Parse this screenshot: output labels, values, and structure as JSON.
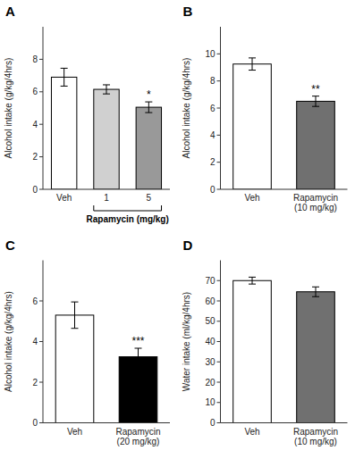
{
  "chart_data": [
    {
      "type": "bar",
      "title": "A",
      "categories": [
        "Veh",
        "1",
        "5"
      ],
      "values": [
        6.9,
        6.15,
        5.05
      ],
      "errors": [
        0.55,
        0.28,
        0.33
      ],
      "colors": [
        "#ffffff",
        "#d0d0d0",
        "#999999"
      ],
      "ylabel": "Alcohol intake (g/kg/4hrs)",
      "xlabel": "Rapamycin (mg/kg)",
      "ylim": [
        0,
        10
      ],
      "yticks": [
        0,
        2,
        4,
        6,
        8
      ],
      "annotations": [
        {
          "category": "5",
          "text": "*"
        }
      ]
    },
    {
      "type": "bar",
      "title": "B",
      "categories": [
        "Veh",
        "Rapamycin\n(10 mg/kg)"
      ],
      "values": [
        9.25,
        6.5
      ],
      "errors": [
        0.45,
        0.38
      ],
      "colors": [
        "#ffffff",
        "#707070"
      ],
      "ylabel": "Alcohol intake (g/kg/4hrs)",
      "ylim": [
        0,
        12
      ],
      "yticks": [
        0,
        2,
        4,
        6,
        8,
        10
      ],
      "annotations": [
        {
          "category": "Rapamycin\n(10 mg/kg)",
          "text": "**"
        }
      ]
    },
    {
      "type": "bar",
      "title": "C",
      "categories": [
        "Veh",
        "Rapamycin\n(20 mg/kg)"
      ],
      "values": [
        5.3,
        3.25
      ],
      "errors": [
        0.65,
        0.42
      ],
      "colors": [
        "#ffffff",
        "#000000"
      ],
      "ylabel": "Alcohol intake (g/kg/4hrs)",
      "ylim": [
        0,
        8
      ],
      "yticks": [
        0,
        2,
        4,
        6
      ],
      "annotations": [
        {
          "category": "Rapamycin\n(20 mg/kg)",
          "text": "***"
        }
      ]
    },
    {
      "type": "bar",
      "title": "D",
      "categories": [
        "Veh",
        "Rapamycin\n(10 mg/kg)"
      ],
      "values": [
        70.0,
        64.5
      ],
      "errors": [
        1.7,
        2.4
      ],
      "colors": [
        "#ffffff",
        "#707070"
      ],
      "ylabel": "Water intake (ml/kg/4hrs)",
      "ylim": [
        0,
        80
      ],
      "yticks": [
        0,
        10,
        20,
        30,
        40,
        50,
        60,
        70
      ]
    }
  ]
}
